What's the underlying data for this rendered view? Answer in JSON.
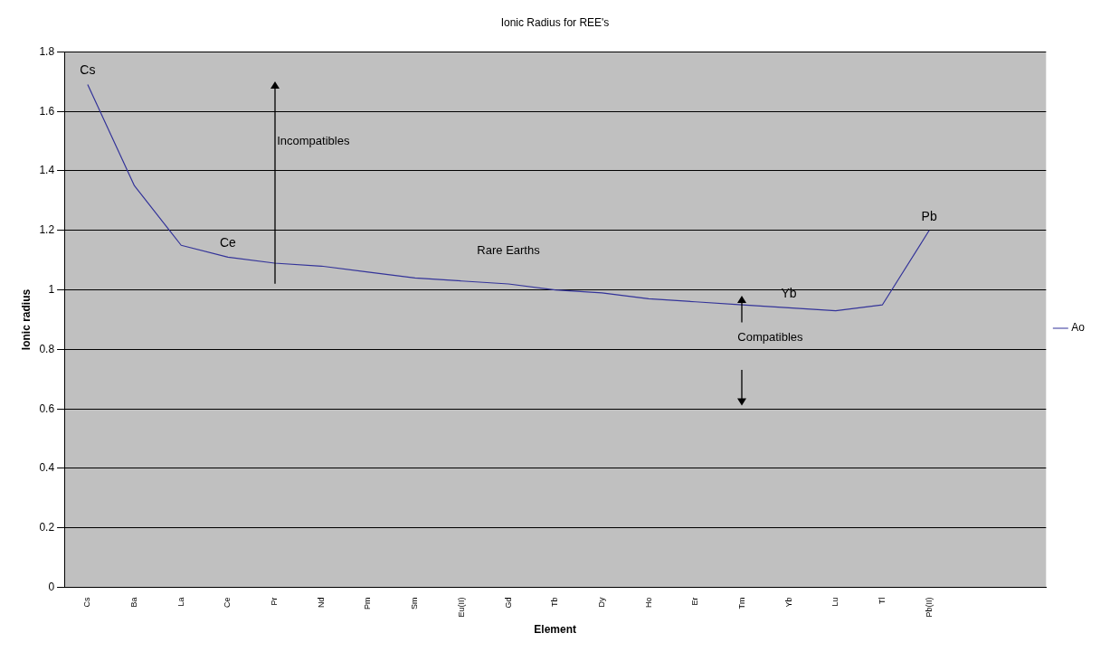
{
  "chart_data": {
    "type": "line",
    "title": "Ionic Radius for REE's",
    "xlabel": "Element",
    "ylabel": "Ionic radius",
    "categories": [
      "Cs",
      "Ba",
      "La",
      "Ce",
      "Pr",
      "Nd",
      "Pm",
      "Sm",
      "Eu(II)",
      "Gd",
      "Tb",
      "Dy",
      "Ho",
      "Er",
      "Tm",
      "Yb",
      "Lu",
      "Tl",
      "Pb(II)",
      null,
      null
    ],
    "series": [
      {
        "name": "Ao",
        "color": "#333399",
        "values": [
          1.69,
          1.35,
          1.15,
          1.11,
          1.09,
          1.08,
          1.06,
          1.04,
          1.03,
          1.02,
          1.0,
          0.99,
          0.97,
          0.96,
          0.95,
          0.94,
          0.93,
          0.95,
          1.2,
          null,
          null
        ]
      }
    ],
    "ylim": [
      0,
      1.8
    ],
    "yticks": [
      0,
      0.2,
      0.4,
      0.6,
      0.8,
      1,
      1.2,
      1.4,
      1.6,
      1.8
    ],
    "grid": "y",
    "legend": "right",
    "marker": "none",
    "line_style": "solid",
    "annotations": [
      {
        "text": "Cs",
        "x": "Cs",
        "y": 1.69
      },
      {
        "text": "Ce",
        "x": "Ce",
        "y": 1.11
      },
      {
        "text": "Pb",
        "x": "Pb(II)",
        "y": 1.2
      },
      {
        "text": "Yb",
        "x": "Yb",
        "y": 0.94
      },
      "Incompatibles",
      "Rare Earths",
      "Compatibles"
    ]
  }
}
